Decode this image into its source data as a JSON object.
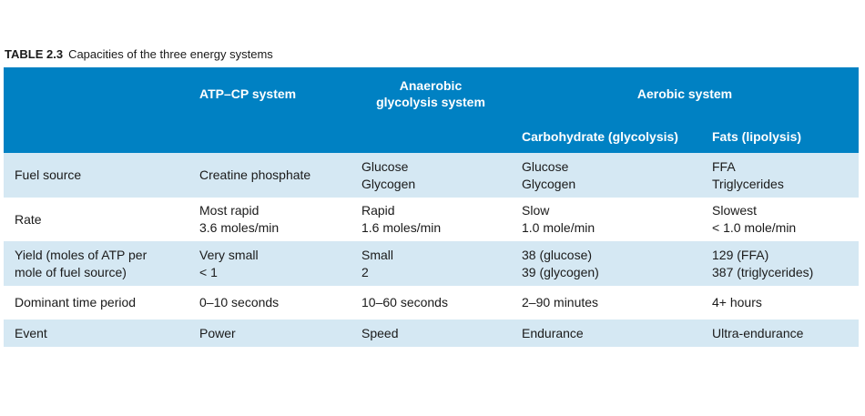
{
  "caption": {
    "number": "TABLE 2.3",
    "text": "Capacities of the three energy systems"
  },
  "header": {
    "atp_cp": "ATP–CP system",
    "anaerobic_line1": "Anaerobic",
    "anaerobic_line2": "glycolysis system",
    "aerobic": "Aerobic system",
    "carbohydrate": "Carbohydrate (glycolysis)",
    "fats": "Fats (lipolysis)"
  },
  "rows": [
    {
      "label": [
        "Fuel source"
      ],
      "atp_cp": [
        "Creatine phosphate"
      ],
      "anaerobic": [
        "Glucose",
        "Glycogen"
      ],
      "carbohydrate": [
        "Glucose",
        "Glycogen"
      ],
      "fats": [
        "FFA",
        "Triglycerides"
      ]
    },
    {
      "label": [
        "Rate"
      ],
      "atp_cp": [
        "Most rapid",
        "3.6 moles/min"
      ],
      "anaerobic": [
        "Rapid",
        "1.6 moles/min"
      ],
      "carbohydrate": [
        "Slow",
        "1.0 mole/min"
      ],
      "fats": [
        "Slowest",
        "< 1.0 mole/min"
      ]
    },
    {
      "label": [
        "Yield (moles of ATP per",
        "mole of fuel source)"
      ],
      "atp_cp": [
        "Very small",
        "< 1"
      ],
      "anaerobic": [
        "Small",
        "2"
      ],
      "carbohydrate": [
        "38 (glucose)",
        "39 (glycogen)"
      ],
      "fats": [
        "129 (FFA)",
        "387 (triglycerides)"
      ]
    },
    {
      "label": [
        "Dominant time period"
      ],
      "atp_cp": [
        "0–10 seconds"
      ],
      "anaerobic": [
        "10–60 seconds"
      ],
      "carbohydrate": [
        "2–90 minutes"
      ],
      "fats": [
        "4+ hours"
      ]
    },
    {
      "label": [
        "Event"
      ],
      "atp_cp": [
        "Power"
      ],
      "anaerobic": [
        "Speed"
      ],
      "carbohydrate": [
        "Endurance"
      ],
      "fats": [
        "Ultra-endurance"
      ]
    }
  ],
  "colors": {
    "header_bg": "#0081c3",
    "header_text": "#ffffff",
    "shaded_row": "#d5e8f3"
  }
}
